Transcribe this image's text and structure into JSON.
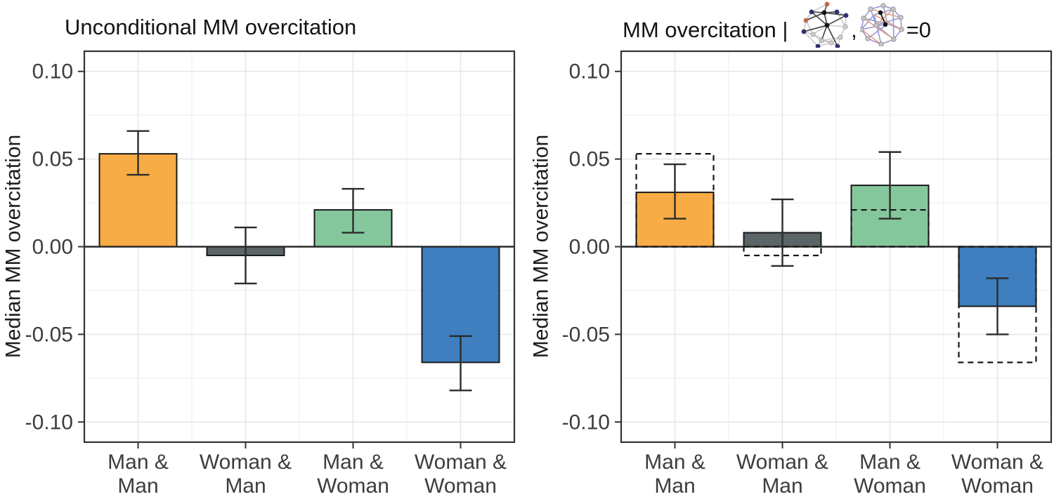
{
  "figure": {
    "background": "#ffffff",
    "panel_border_color": "#333333",
    "gridline_major_color": "#e7e7e7",
    "gridline_minor_color": "#f2f2f2",
    "axis_text_color": "#3d3d3d",
    "title_color": "#141414"
  },
  "chart_data": [
    {
      "panel": "left",
      "type": "bar",
      "title": "Unconditional MM overcitation",
      "ylabel": "Median MM overcitation",
      "categories": [
        "Man & Man",
        "Woman & Man",
        "Man & Woman",
        "Woman & Woman"
      ],
      "category_label_lines": [
        [
          "Man &",
          "Man"
        ],
        [
          "Woman &",
          "Man"
        ],
        [
          "Man &",
          "Woman"
        ],
        [
          "Woman &",
          "Woman"
        ]
      ],
      "values": [
        0.053,
        -0.005,
        0.021,
        -0.066
      ],
      "ci_low": [
        0.041,
        -0.021,
        0.008,
        -0.082
      ],
      "ci_high": [
        0.066,
        0.011,
        0.033,
        -0.051
      ],
      "bar_colors": [
        "#F8AC45",
        "#5B6467",
        "#85C79C",
        "#3F7FBF"
      ],
      "bar_border_color": "#1a1a1a",
      "error_bar_color": "#2b2b2b",
      "yticks": [
        0.1,
        0.05,
        0,
        -0.05,
        -0.1
      ],
      "ytick_labels": [
        "0.10",
        "0.05",
        "0.00",
        "-0.05",
        "-0.10"
      ],
      "ylim": [
        -0.1115,
        0.1115
      ],
      "grid": true,
      "legend": "none"
    },
    {
      "panel": "right",
      "type": "bar",
      "title_parts": {
        "prefix": "MM overcitation | ",
        "separator": ",",
        "suffix": "=0"
      },
      "title_icons": [
        "citation-network-graph-icon",
        "coauthorship-network-graph-icon"
      ],
      "ylabel": "Median MM overcitation",
      "categories": [
        "Man & Man",
        "Woman & Man",
        "Man & Woman",
        "Woman & Woman"
      ],
      "category_label_lines": [
        [
          "Man &",
          "Man"
        ],
        [
          "Woman &",
          "Man"
        ],
        [
          "Man &",
          "Woman"
        ],
        [
          "Woman &",
          "Woman"
        ]
      ],
      "values": [
        0.031,
        0.008,
        0.035,
        -0.034
      ],
      "ci_low": [
        0.016,
        -0.011,
        0.016,
        -0.05
      ],
      "ci_high": [
        0.047,
        0.027,
        0.054,
        -0.018
      ],
      "reference_values": [
        0.053,
        -0.005,
        0.021,
        -0.066
      ],
      "reference_style": "dashed-outline",
      "bar_colors": [
        "#F8AC45",
        "#5B6467",
        "#85C79C",
        "#3F7FBF"
      ],
      "bar_border_color": "#1a1a1a",
      "error_bar_color": "#2b2b2b",
      "yticks": [
        0.1,
        0.05,
        0,
        -0.05,
        -0.1
      ],
      "ytick_labels": [
        "0.10",
        "0.05",
        "0.00",
        "-0.05",
        "-0.10"
      ],
      "ylim": [
        -0.1115,
        0.1115
      ],
      "grid": true,
      "legend": "none"
    }
  ]
}
